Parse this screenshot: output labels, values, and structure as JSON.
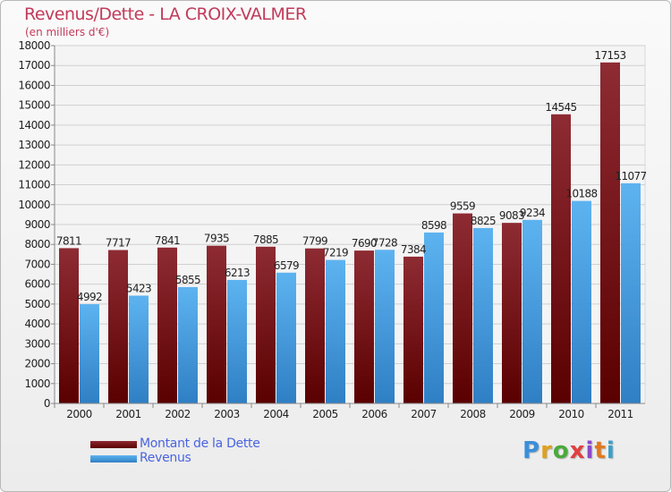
{
  "title": "Revenus/Dette - LA CROIX-VALMER",
  "subtitle": "(en milliers d'€)",
  "logo_text": "Proxiti",
  "colors": {
    "dette": "#7a1b22",
    "revenus": "#4ea6e8",
    "title": "#c23b5a",
    "legend_text": "#4a64e0"
  },
  "chart_data": {
    "type": "bar",
    "title": "Revenus/Dette - LA CROIX-VALMER",
    "subtitle": "(en milliers d'€)",
    "categories": [
      "2000",
      "2001",
      "2002",
      "2003",
      "2004",
      "2005",
      "2006",
      "2007",
      "2008",
      "2009",
      "2010",
      "2011"
    ],
    "series": [
      {
        "name": "Montant de la Dette",
        "values": [
          7811,
          7717,
          7841,
          7935,
          7885,
          7799,
          7690,
          7384,
          9559,
          9083,
          14545,
          17153
        ]
      },
      {
        "name": "Revenus",
        "values": [
          4992,
          5423,
          5855,
          6213,
          6579,
          7219,
          7728,
          8598,
          8825,
          9234,
          10188,
          11077
        ]
      }
    ],
    "ylim": [
      0,
      18000
    ],
    "yticks": [
      0,
      1000,
      2000,
      3000,
      4000,
      5000,
      6000,
      7000,
      8000,
      9000,
      10000,
      11000,
      12000,
      13000,
      14000,
      15000,
      16000,
      17000,
      18000
    ],
    "grid": true,
    "legend_position": "bottom-left"
  }
}
